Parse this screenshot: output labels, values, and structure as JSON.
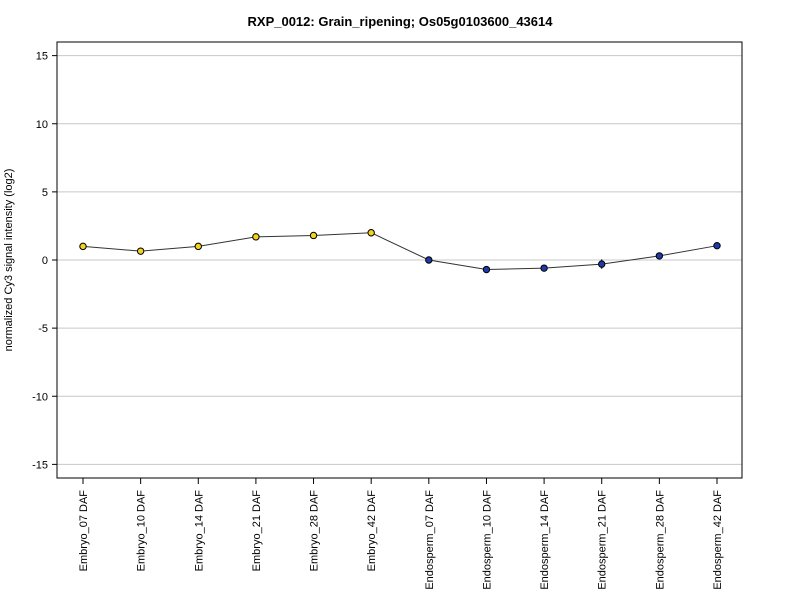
{
  "chart_data": {
    "type": "line",
    "title": "RXP_0012: Grain_ripening; Os05g0103600_43614",
    "xlabel": "",
    "ylabel": "normalized Cy3 signal intensity (log2)",
    "ylim": [
      -16,
      16
    ],
    "yticks": [
      15,
      10,
      5,
      0,
      -5,
      -10,
      -15
    ],
    "grid": true,
    "categories": [
      "Embryo_07 DAF",
      "Embryo_10 DAF",
      "Embryo_14 DAF",
      "Embryo_21 DAF",
      "Embryo_28 DAF",
      "Embryo_42 DAF",
      "Endosperm_07 DAF",
      "Endosperm_10 DAF",
      "Endosperm_14 DAF",
      "Endosperm_21 DAF",
      "Endosperm_28 DAF",
      "Endosperm_42 DAF"
    ],
    "series": [
      {
        "values": [
          1.0,
          0.65,
          1.0,
          1.7,
          1.8,
          2.0,
          0.0,
          -0.7,
          -0.6,
          -0.3,
          0.3,
          1.05
        ],
        "error": [
          0.15,
          0.1,
          0.12,
          0.12,
          0.1,
          0.1,
          0.1,
          0.25,
          0.2,
          0.35,
          0.15,
          0.12
        ]
      }
    ],
    "point_colors": [
      "#f2d21b",
      "#f2d21b",
      "#f2d21b",
      "#f2d21b",
      "#f2d21b",
      "#f2d21b",
      "#1f3aa8",
      "#1f3aa8",
      "#1f3aa8",
      "#1f3aa8",
      "#1f3aa8",
      "#1f3aa8"
    ]
  }
}
